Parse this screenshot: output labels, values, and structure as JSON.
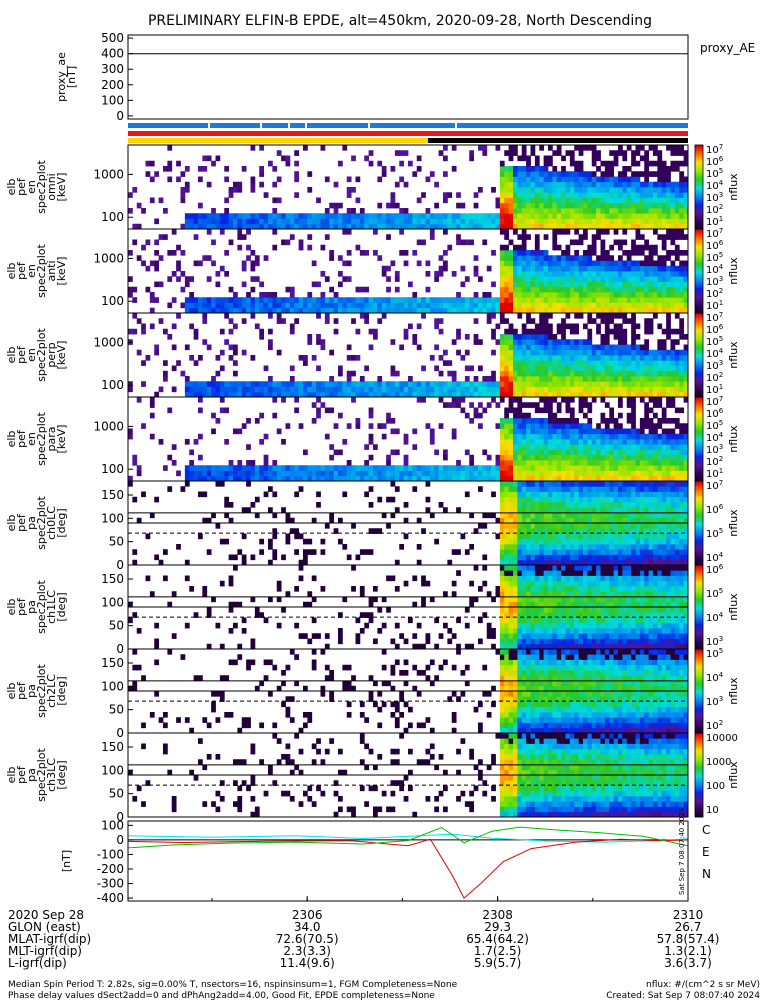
{
  "title": "PRELIMINARY ELFIN-B EPDE, alt=450km, 2020-09-28, North Descending",
  "chart_data": [
    {
      "type": "line",
      "name": "proxy_ae",
      "ylabel_lines": [
        "proxy_ae",
        "[nT]"
      ],
      "right_label": "proxy_AE",
      "yticks": [
        "500",
        "400",
        "300",
        "200",
        "100",
        "0"
      ],
      "ylim": [
        -20,
        520
      ],
      "series": [
        {
          "name": "proxy_ae",
          "values": [
            400,
            400
          ]
        }
      ]
    },
    {
      "type": "heatmap",
      "ylabel_lines": [
        "elb",
        "pef",
        "en",
        "spec2plot",
        "omni",
        "[keV]"
      ],
      "yticks": [
        "1000",
        "100"
      ],
      "ylog": true,
      "ylim": [
        60,
        6000
      ],
      "colorbar": {
        "label": "nflux",
        "ticks": [
          "10^7",
          "10^6",
          "10^5",
          "10^4",
          "10^3",
          "10^2",
          "10^1"
        ]
      },
      "hasLC": false
    },
    {
      "type": "heatmap",
      "ylabel_lines": [
        "elb",
        "pef",
        "en",
        "spec2plot",
        "anti",
        "[keV]"
      ],
      "yticks": [
        "1000",
        "100"
      ],
      "ylog": true,
      "ylim": [
        60,
        6000
      ],
      "colorbar": {
        "label": "nflux",
        "ticks": [
          "10^7",
          "10^6",
          "10^5",
          "10^4",
          "10^3",
          "10^2",
          "10^1"
        ]
      },
      "hasLC": false
    },
    {
      "type": "heatmap",
      "ylabel_lines": [
        "elb",
        "pef",
        "en",
        "spec2plot",
        "perp",
        "[keV]"
      ],
      "yticks": [
        "1000",
        "100"
      ],
      "ylog": true,
      "ylim": [
        60,
        6000
      ],
      "colorbar": {
        "label": "nflux",
        "ticks": [
          "10^7",
          "10^6",
          "10^5",
          "10^4",
          "10^3",
          "10^2",
          "10^1"
        ]
      },
      "hasLC": false
    },
    {
      "type": "heatmap",
      "ylabel_lines": [
        "elb",
        "pef",
        "en",
        "spec2plot",
        "para",
        "[keV]"
      ],
      "yticks": [
        "1000",
        "100"
      ],
      "ylog": true,
      "ylim": [
        60,
        6000
      ],
      "colorbar": {
        "label": "nflux",
        "ticks": [
          "10^7",
          "10^6",
          "10^5",
          "10^4",
          "10^3",
          "10^2",
          "10^1"
        ]
      },
      "hasLC": false
    },
    {
      "type": "heatmap",
      "ylabel_lines": [
        "elb",
        "pef",
        "pa",
        "spec2plot",
        "ch0LC",
        "[deg]"
      ],
      "yticks": [
        "150",
        "100",
        "50",
        "0"
      ],
      "ylim": [
        0,
        180
      ],
      "colorbar": {
        "label": "nflux",
        "ticks": [
          "10^7",
          "10^6",
          "10^5",
          "10^4"
        ]
      },
      "hasLC": true
    },
    {
      "type": "heatmap",
      "ylabel_lines": [
        "elb",
        "pef",
        "pa",
        "spec2plot",
        "ch1LC",
        "[deg]"
      ],
      "yticks": [
        "150",
        "100",
        "50",
        "0"
      ],
      "ylim": [
        0,
        180
      ],
      "colorbar": {
        "label": "nflux",
        "ticks": [
          "10^6",
          "10^5",
          "10^4",
          "10^3"
        ]
      },
      "hasLC": true
    },
    {
      "type": "heatmap",
      "ylabel_lines": [
        "elb",
        "pef",
        "pa",
        "spec2plot",
        "ch2LC",
        "[deg]"
      ],
      "yticks": [
        "150",
        "100",
        "50",
        "0"
      ],
      "ylim": [
        0,
        180
      ],
      "colorbar": {
        "label": "nflux",
        "ticks": [
          "10^5",
          "10^4",
          "10^3",
          "10^2"
        ]
      },
      "hasLC": true
    },
    {
      "type": "heatmap",
      "ylabel_lines": [
        "elb",
        "pef",
        "pa",
        "spec2plot",
        "ch3LC",
        "[deg]"
      ],
      "yticks": [
        "150",
        "100",
        "50",
        "0"
      ],
      "ylim": [
        0,
        180
      ],
      "colorbar": {
        "label": "nflux",
        "ticks": [
          "10000",
          "1000",
          "100",
          "10"
        ]
      },
      "hasLC": true
    },
    {
      "type": "line",
      "ylabel_lines": [
        "[nT]"
      ],
      "yticks": [
        "100",
        "0",
        "-100",
        "-200",
        "-300",
        "-400"
      ],
      "ylim": [
        -420,
        130
      ],
      "legend": [
        {
          "label": "C",
          "color": "#00e5e5"
        },
        {
          "label": "E",
          "color": "#e00000"
        },
        {
          "label": "N",
          "color": "#00c000"
        }
      ],
      "series": [
        {
          "name": "C",
          "color": "#00e5e5",
          "x": [
            0,
            0.06,
            0.15,
            0.3,
            0.42,
            0.53,
            0.58,
            0.65,
            0.75,
            0.85,
            0.95,
            1
          ],
          "values": [
            28,
            24,
            18,
            28,
            10,
            30,
            40,
            12,
            -8,
            -15,
            -5,
            8
          ]
        },
        {
          "name": "E",
          "color": "#e00000",
          "x": [
            0,
            0.1,
            0.25,
            0.4,
            0.5,
            0.54,
            0.58,
            0.6,
            0.63,
            0.67,
            0.72,
            0.8,
            0.88,
            0.95,
            1
          ],
          "values": [
            -10,
            -18,
            -8,
            -6,
            -40,
            5,
            -250,
            -400,
            -300,
            -150,
            -60,
            -15,
            5,
            -6,
            0
          ]
        },
        {
          "name": "N",
          "color": "#00c000",
          "x": [
            0,
            0.08,
            0.18,
            0.3,
            0.42,
            0.5,
            0.56,
            0.6,
            0.65,
            0.7,
            0.76,
            0.84,
            0.92,
            1
          ],
          "values": [
            -55,
            -35,
            -22,
            -15,
            -28,
            -5,
            85,
            -20,
            60,
            88,
            70,
            50,
            25,
            -40
          ]
        }
      ]
    }
  ],
  "xaxis": {
    "ticks": [
      "2306",
      "2308",
      "2310"
    ]
  },
  "orbit_table": {
    "rows": [
      {
        "label": "2020 Sep 28",
        "vals": [
          "",
          "",
          ""
        ]
      },
      {
        "label": "GLON (east)",
        "vals": [
          "34.0",
          "29.3",
          "26.7"
        ]
      },
      {
        "label": "MLAT-igrf(dip)",
        "vals": [
          "72.6(70.5)",
          "65.4(64.2)",
          "57.8(57.4)"
        ]
      },
      {
        "label": "MLT-igrf(dip)",
        "vals": [
          "2.3(3.3)",
          "1.7(2.5)",
          "1.3(2.1)"
        ]
      },
      {
        "label": "L-igrf(dip)",
        "vals": [
          "11.4(9.6)",
          "5.9(5.7)",
          "3.6(3.7)"
        ]
      }
    ]
  },
  "footer": {
    "line1_left": "Median Spin Period T: 2.82s, sig=0.00% T, nsectors=16, nspinsinsum=1, FGM Completeness=None",
    "line2_left": "Phase delay values dSect2add=0 and dPhAng2add=4.00, Good Fit, EPDE completeness=None",
    "line1_right": "nflux: #/(cm^2 s sr MeV)",
    "line2_right": "Created: Sat Sep  7 08:07:40 2024",
    "side_stamp": "Sat Sep  7 08:07:40 2024"
  },
  "colors": {
    "state_blue": "#1e7ad8",
    "state_red": "#e41a1a",
    "state_yellow": "#ffd400",
    "state_black": "#000000"
  }
}
